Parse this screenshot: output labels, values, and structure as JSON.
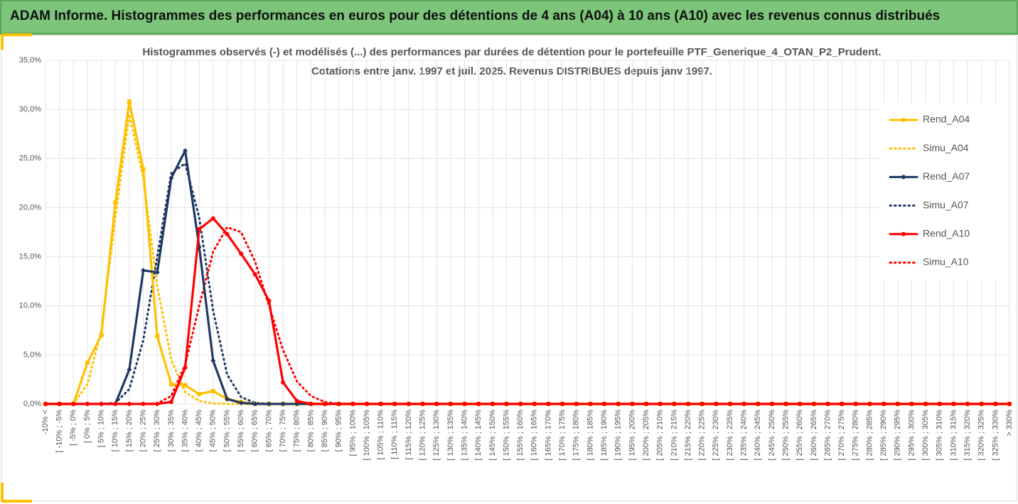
{
  "header": {
    "title": "ADAM Informe. Histogrammes des performances en euros pour des détentions de 4 ans (A04) à 10 ans (A10) avec les revenus connus distribués"
  },
  "chart_data": {
    "type": "line",
    "title": [
      "Histogrammes observés (-) et modélisés (...) des performances par durées de détention pour le portefeuille PTF_Generique_4_OTAN_P2_Prudent.",
      "Cotations entre janv. 1997 et juil. 2025. Revenus DISTRIBUES depuis janv 1997."
    ],
    "categories": [
      "-10% <",
      "[ -10% ; -5%",
      "[ -5% ; 0%",
      "[ 0% ; 5%",
      "[ 5% ; 10%",
      "[ 10% ; 15%",
      "[ 15% ; 20%",
      "[ 20% ; 25%",
      "[ 25% ; 30%",
      "[ 30% ; 35%",
      "[ 35% ; 40%",
      "[ 40% ; 45%",
      "[ 45% ; 50%",
      "[ 50% ; 55%",
      "[ 55% ; 60%",
      "[ 60% ; 65%",
      "[ 65% ; 70%",
      "[ 70% ; 75%",
      "[ 75% ; 80%",
      "[ 80% ; 85%",
      "[ 85% ; 90%",
      "[ 90% ; 95%",
      "[ 95% ; 100%",
      "[ 100% ; 105%",
      "[ 105% ; 110%",
      "[ 110% ; 115%",
      "[ 115% ; 120%",
      "[ 120% ; 125%",
      "[ 125% ; 130%",
      "[ 130% ; 135%",
      "[ 135% ; 140%",
      "[ 140% ; 145%",
      "[ 145% ; 150%",
      "[ 150% ; 155%",
      "[ 155% ; 160%",
      "[ 160% ; 165%",
      "[ 165% ; 170%",
      "[ 170% ; 175%",
      "[ 175% ; 180%",
      "[ 180% ; 185%",
      "[ 185% ; 190%",
      "[ 190% ; 195%",
      "[ 195% ; 200%",
      "[ 200% ; 205%",
      "[ 205% ; 210%",
      "[ 210% ; 215%",
      "[ 215% ; 220%",
      "[ 220% ; 225%",
      "[ 225% ; 230%",
      "[ 230% ; 235%",
      "[ 235% ; 240%",
      "[ 240% ; 245%",
      "[ 245% ; 250%",
      "[ 250% ; 255%",
      "[ 255% ; 260%",
      "[ 260% ; 265%",
      "[ 265% ; 270%",
      "[ 270% ; 275%",
      "[ 275% ; 280%",
      "[ 280% ; 285%",
      "[ 285% ; 290%",
      "[ 290% ; 295%",
      "[ 295% ; 300%",
      "[ 300% ; 305%",
      "[ 305% ; 310%",
      "[ 310% ; 315%",
      "[ 315% ; 320%",
      "[ 320% ; 325%",
      "[ 325% ; 330%",
      "> 330%"
    ],
    "series": [
      {
        "name": "Rend_A04",
        "color": "#ffc000",
        "dash": false,
        "marker": "square",
        "values": [
          0,
          0,
          0,
          4.2,
          7.0,
          20.5,
          30.8,
          23.9,
          6.9,
          2.0,
          1.9,
          1.0,
          1.3,
          0.5,
          0.2,
          0,
          0,
          0,
          0,
          0,
          0,
          0,
          0,
          0,
          0,
          0,
          0,
          0,
          0,
          0,
          0,
          0,
          0,
          0,
          0,
          0,
          0,
          0,
          0,
          0,
          0,
          0,
          0,
          0,
          0,
          0,
          0,
          0,
          0,
          0,
          0,
          0,
          0,
          0,
          0,
          0,
          0,
          0,
          0,
          0,
          0,
          0,
          0,
          0,
          0,
          0,
          0,
          0,
          0,
          0
        ]
      },
      {
        "name": "Simu_A04",
        "color": "#ffc000",
        "dash": true,
        "marker": null,
        "values": [
          0,
          0,
          0,
          2.0,
          7.5,
          19.0,
          29.5,
          23.0,
          12.0,
          4.5,
          1.2,
          0.3,
          0.05,
          0,
          0,
          0,
          0,
          0,
          0,
          0,
          0,
          0,
          0,
          0,
          0,
          0,
          0,
          0,
          0,
          0,
          0,
          0,
          0,
          0,
          0,
          0,
          0,
          0,
          0,
          0,
          0,
          0,
          0,
          0,
          0,
          0,
          0,
          0,
          0,
          0,
          0,
          0,
          0,
          0,
          0,
          0,
          0,
          0,
          0,
          0,
          0,
          0,
          0,
          0,
          0,
          0,
          0,
          0,
          0,
          0
        ]
      },
      {
        "name": "Rend_A07",
        "color": "#1f3864",
        "dash": false,
        "marker": "diamond",
        "values": [
          0,
          0,
          0,
          0,
          0,
          0,
          3.5,
          13.6,
          13.4,
          23.0,
          25.8,
          16.0,
          4.4,
          0.5,
          0.1,
          0,
          0,
          0,
          0,
          0,
          0,
          0,
          0,
          0,
          0,
          0,
          0,
          0,
          0,
          0,
          0,
          0,
          0,
          0,
          0,
          0,
          0,
          0,
          0,
          0,
          0,
          0,
          0,
          0,
          0,
          0,
          0,
          0,
          0,
          0,
          0,
          0,
          0,
          0,
          0,
          0,
          0,
          0,
          0,
          0,
          0,
          0,
          0,
          0,
          0,
          0,
          0,
          0,
          0,
          0
        ]
      },
      {
        "name": "Simu_A07",
        "color": "#1f3864",
        "dash": true,
        "marker": null,
        "values": [
          0,
          0,
          0,
          0,
          0,
          0.1,
          1.5,
          6.5,
          15.0,
          23.5,
          24.5,
          19.0,
          9.5,
          3.0,
          0.7,
          0.1,
          0,
          0,
          0,
          0,
          0,
          0,
          0,
          0,
          0,
          0,
          0,
          0,
          0,
          0,
          0,
          0,
          0,
          0,
          0,
          0,
          0,
          0,
          0,
          0,
          0,
          0,
          0,
          0,
          0,
          0,
          0,
          0,
          0,
          0,
          0,
          0,
          0,
          0,
          0,
          0,
          0,
          0,
          0,
          0,
          0,
          0,
          0,
          0,
          0,
          0,
          0,
          0,
          0,
          0
        ]
      },
      {
        "name": "Rend_A10",
        "color": "#ff0000",
        "dash": false,
        "marker": "circle",
        "values": [
          0,
          0,
          0,
          0,
          0,
          0,
          0,
          0,
          0,
          0.2,
          3.7,
          17.8,
          18.9,
          17.3,
          15.3,
          13.2,
          10.5,
          2.2,
          0.3,
          0,
          0,
          0,
          0,
          0,
          0,
          0,
          0,
          0,
          0,
          0,
          0,
          0,
          0,
          0,
          0,
          0,
          0,
          0,
          0,
          0,
          0,
          0,
          0,
          0,
          0,
          0,
          0,
          0,
          0,
          0,
          0,
          0,
          0,
          0,
          0,
          0,
          0,
          0,
          0,
          0,
          0,
          0,
          0,
          0,
          0,
          0,
          0,
          0,
          0,
          0
        ]
      },
      {
        "name": "Simu_A10",
        "color": "#ff0000",
        "dash": true,
        "marker": null,
        "values": [
          0,
          0,
          0,
          0,
          0,
          0,
          0,
          0,
          0.05,
          0.8,
          4.0,
          10.0,
          15.5,
          18.0,
          17.5,
          14.5,
          10.0,
          5.5,
          2.3,
          0.8,
          0.2,
          0,
          0,
          0,
          0,
          0,
          0,
          0,
          0,
          0,
          0,
          0,
          0,
          0,
          0,
          0,
          0,
          0,
          0,
          0,
          0,
          0,
          0,
          0,
          0,
          0,
          0,
          0,
          0,
          0,
          0,
          0,
          0,
          0,
          0,
          0,
          0,
          0,
          0,
          0,
          0,
          0,
          0,
          0,
          0,
          0,
          0,
          0,
          0,
          0
        ]
      }
    ],
    "ylim": [
      0,
      35
    ],
    "yticks": [
      {
        "value": 0,
        "label": "0,0%"
      },
      {
        "value": 5,
        "label": "5,0%"
      },
      {
        "value": 10,
        "label": "10,0%"
      },
      {
        "value": 15,
        "label": "15,0%"
      },
      {
        "value": 20,
        "label": "20,0%"
      },
      {
        "value": 25,
        "label": "25,0%"
      },
      {
        "value": 30,
        "label": "30,0%"
      },
      {
        "value": 35,
        "label": "35,0%"
      }
    ],
    "grid": true,
    "legend": "right"
  }
}
